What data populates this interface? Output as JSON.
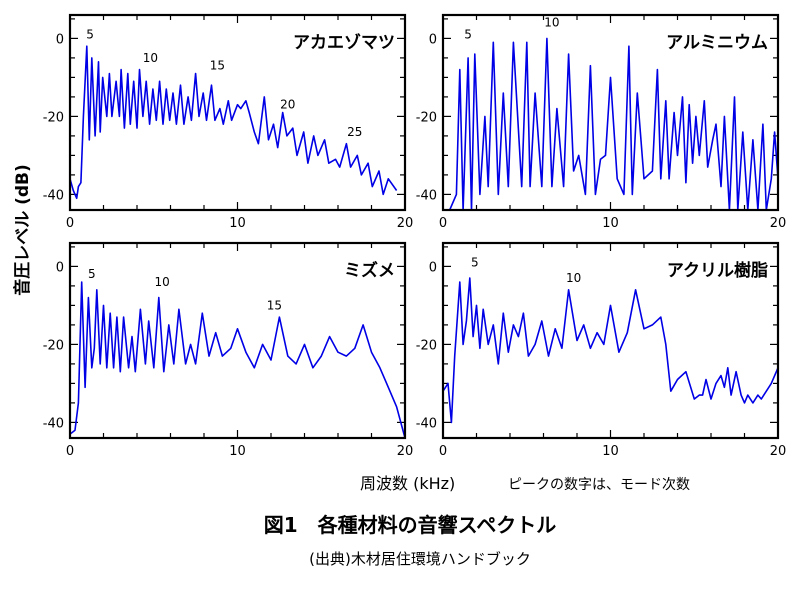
{
  "figure": {
    "ylabel": "音圧レベル (dB)",
    "xlabel": "周波数 (kHz)",
    "note": "ピークの数字は、モード次数",
    "title": "図1　各種材料の音響スペクトル",
    "source": "(出典)木材居住環境ハンドブック"
  },
  "chart_data": [
    {
      "type": "line",
      "title": "アカエゾマツ",
      "xlabel": "周波数 (kHz)",
      "ylabel": "音圧レベル (dB)",
      "xlim": [
        0,
        20
      ],
      "ylim": [
        -44,
        6
      ],
      "xticks": [
        0,
        10,
        20
      ],
      "yticks": [
        0,
        -20,
        -40
      ],
      "grid": false,
      "series": [
        {
          "color": "#0000e6",
          "x": [
            0.0,
            0.2,
            0.4,
            0.5,
            0.65,
            0.8,
            1.0,
            1.15,
            1.3,
            1.5,
            1.7,
            1.8,
            1.95,
            2.2,
            2.35,
            2.5,
            2.75,
            2.95,
            3.05,
            3.25,
            3.45,
            3.6,
            3.8,
            4.0,
            4.15,
            4.35,
            4.55,
            4.75,
            4.95,
            5.15,
            5.35,
            5.55,
            5.75,
            5.95,
            6.15,
            6.35,
            6.6,
            6.8,
            7.05,
            7.25,
            7.5,
            7.7,
            7.95,
            8.15,
            8.45,
            8.65,
            8.95,
            9.15,
            9.45,
            9.65,
            10.0,
            10.2,
            10.5,
            10.7,
            11.0,
            11.25,
            11.6,
            11.85,
            12.15,
            12.4,
            12.7,
            12.95,
            13.3,
            13.55,
            13.95,
            14.2,
            14.55,
            14.8,
            15.2,
            15.45,
            15.85,
            16.1,
            16.5,
            16.75,
            17.15,
            17.4,
            17.8,
            18.05,
            18.45,
            18.7,
            19.0,
            19.5
          ],
          "y": [
            -36,
            -39,
            -41,
            -38,
            -37,
            -20,
            -2,
            -26,
            -5,
            -25,
            -6,
            -24,
            -10,
            -20,
            -9,
            -20,
            -11,
            -20,
            -8,
            -23,
            -9,
            -22,
            -11,
            -23,
            -8,
            -20,
            -11,
            -22,
            -13,
            -21,
            -11,
            -22,
            -13,
            -21,
            -14,
            -22,
            -12,
            -22,
            -15,
            -21,
            -9,
            -20,
            -14,
            -21,
            -12,
            -21,
            -18,
            -22,
            -16,
            -21,
            -17,
            -18,
            -16,
            -19,
            -24,
            -27,
            -15,
            -26,
            -22,
            -28,
            -19,
            -25,
            -23,
            -30,
            -24,
            -32,
            -25,
            -30,
            -26,
            -32,
            -31,
            -33,
            -27,
            -33,
            -30,
            -35,
            -32,
            -38,
            -34,
            -40,
            -36,
            -39
          ]
        }
      ],
      "annotations": [
        {
          "text": "5",
          "x": 1.2,
          "y": 0
        },
        {
          "text": "10",
          "x": 4.8,
          "y": -6
        },
        {
          "text": "15",
          "x": 8.8,
          "y": -8
        },
        {
          "text": "20",
          "x": 13.0,
          "y": -18
        },
        {
          "text": "25",
          "x": 17.0,
          "y": -25
        }
      ]
    },
    {
      "type": "line",
      "title": "アルミニウム",
      "xlabel": "周波数 (kHz)",
      "ylabel": "音圧レベル (dB)",
      "xlim": [
        0,
        20
      ],
      "ylim": [
        -44,
        6
      ],
      "xticks": [
        0,
        10,
        20
      ],
      "yticks": [
        0,
        -20,
        -40
      ],
      "grid": false,
      "series": [
        {
          "color": "#0000e6",
          "x": [
            0.4,
            0.8,
            1.0,
            1.2,
            1.5,
            1.7,
            1.9,
            2.2,
            2.5,
            2.7,
            3.0,
            3.3,
            3.6,
            3.9,
            4.2,
            4.7,
            5.0,
            5.2,
            5.5,
            5.9,
            6.2,
            6.5,
            6.8,
            7.2,
            7.5,
            7.8,
            8.1,
            8.5,
            8.8,
            9.1,
            9.4,
            9.7,
            10.0,
            10.4,
            10.8,
            11.1,
            11.3,
            11.6,
            12.0,
            12.5,
            12.8,
            13.0,
            13.3,
            13.5,
            13.8,
            14.0,
            14.3,
            14.5,
            14.7,
            14.9,
            15.1,
            15.3,
            15.6,
            15.8,
            16.1,
            16.3,
            16.6,
            16.8,
            17.1,
            17.4,
            17.6,
            17.9,
            18.2,
            18.5,
            18.8,
            19.1,
            19.3,
            19.6,
            19.8,
            20.0
          ],
          "y": [
            -44,
            -40,
            -8,
            -44,
            -5,
            -44,
            -4,
            -40,
            -20,
            -38,
            -1,
            -40,
            -14,
            -38,
            -1,
            -38,
            -1,
            -38,
            -14,
            -38,
            0,
            -38,
            -18,
            -38,
            -4,
            -34,
            -30,
            -40,
            -7,
            -40,
            -31,
            -30,
            -10,
            -36,
            -40,
            -2,
            -40,
            -14,
            -36,
            -34,
            -8,
            -36,
            -16,
            -36,
            -19,
            -30,
            -15,
            -37,
            -17,
            -32,
            -20,
            -30,
            -16,
            -33,
            -26,
            -22,
            -38,
            -20,
            -44,
            -15,
            -44,
            -24,
            -44,
            -26,
            -44,
            -22,
            -44,
            -36,
            -24,
            -36
          ]
        }
      ],
      "annotations": [
        {
          "text": "5",
          "x": 1.5,
          "y": 0
        },
        {
          "text": "10",
          "x": 6.5,
          "y": 3
        }
      ]
    },
    {
      "type": "line",
      "title": "ミズメ",
      "xlabel": "周波数 (kHz)",
      "ylabel": "音圧レベル (dB)",
      "xlim": [
        0,
        20
      ],
      "ylim": [
        -44,
        6
      ],
      "xticks": [
        0,
        10,
        20
      ],
      "yticks": [
        0,
        -20,
        -40
      ],
      "grid": false,
      "series": [
        {
          "color": "#0000e6",
          "x": [
            0.0,
            0.3,
            0.5,
            0.7,
            0.9,
            1.1,
            1.3,
            1.45,
            1.6,
            1.8,
            2.0,
            2.2,
            2.4,
            2.6,
            2.8,
            3.0,
            3.2,
            3.5,
            3.7,
            3.9,
            4.2,
            4.5,
            4.7,
            5.0,
            5.3,
            5.6,
            5.9,
            6.2,
            6.5,
            6.9,
            7.2,
            7.5,
            7.9,
            8.3,
            8.7,
            9.1,
            9.6,
            10.0,
            10.5,
            11.0,
            11.5,
            12.0,
            12.5,
            13.0,
            13.5,
            14.0,
            14.5,
            15.0,
            15.5,
            16.0,
            16.5,
            17.0,
            17.5,
            18.0,
            18.5,
            19.0,
            19.5,
            20.0
          ],
          "y": [
            -43,
            -42,
            -35,
            -4,
            -31,
            -8,
            -26,
            -21,
            -6,
            -25,
            -10,
            -26,
            -12,
            -26,
            -13,
            -27,
            -13,
            -26,
            -18,
            -27,
            -11,
            -25,
            -14,
            -26,
            -8,
            -27,
            -15,
            -25,
            -11,
            -25,
            -20,
            -25,
            -12,
            -23,
            -17,
            -23,
            -21,
            -16,
            -22,
            -26,
            -20,
            -24,
            -13,
            -23,
            -25,
            -20,
            -26,
            -23,
            -18,
            -22,
            -23,
            -21,
            -15,
            -22,
            -26,
            -31,
            -36,
            -44
          ]
        }
      ],
      "annotations": [
        {
          "text": "5",
          "x": 1.3,
          "y": -3
        },
        {
          "text": "10",
          "x": 5.5,
          "y": -5
        },
        {
          "text": "15",
          "x": 12.2,
          "y": -11
        }
      ]
    },
    {
      "type": "line",
      "title": "アクリル樹脂",
      "xlabel": "周波数 (kHz)",
      "ylabel": "音圧レベル (dB)",
      "xlim": [
        0,
        20
      ],
      "ylim": [
        -44,
        6
      ],
      "xticks": [
        0,
        10,
        20
      ],
      "yticks": [
        0,
        -20,
        -40
      ],
      "grid": false,
      "series": [
        {
          "color": "#0000e6",
          "x": [
            0.0,
            0.3,
            0.5,
            0.7,
            1.0,
            1.2,
            1.4,
            1.6,
            1.8,
            2.0,
            2.2,
            2.4,
            2.7,
            3.0,
            3.3,
            3.6,
            3.9,
            4.2,
            4.5,
            4.8,
            5.1,
            5.5,
            5.9,
            6.3,
            6.7,
            7.1,
            7.5,
            8.0,
            8.4,
            8.8,
            9.2,
            9.6,
            10.0,
            10.5,
            11.0,
            11.5,
            12.0,
            12.5,
            13.0,
            13.3,
            13.6,
            14.0,
            14.5,
            15.0,
            15.3,
            15.5,
            15.7,
            16.0,
            16.3,
            16.6,
            16.8,
            17.0,
            17.2,
            17.5,
            17.8,
            18.0,
            18.2,
            18.5,
            18.8,
            19.0,
            19.3,
            19.6,
            20.0
          ],
          "y": [
            -32,
            -30,
            -40,
            -23,
            -4,
            -20,
            -14,
            -3,
            -18,
            -10,
            -21,
            -11,
            -20,
            -15,
            -25,
            -12,
            -22,
            -15,
            -18,
            -12,
            -23,
            -20,
            -14,
            -23,
            -16,
            -21,
            -6,
            -19,
            -15,
            -21,
            -17,
            -20,
            -10,
            -22,
            -17,
            -6,
            -16,
            -15,
            -13,
            -20,
            -32,
            -29,
            -27,
            -34,
            -33,
            -33,
            -29,
            -34,
            -30,
            -28,
            -31,
            -26,
            -33,
            -27,
            -33,
            -35,
            -33,
            -35,
            -33,
            -34,
            -32,
            -30,
            -26
          ]
        }
      ],
      "annotations": [
        {
          "text": "5",
          "x": 1.9,
          "y": 0
        },
        {
          "text": "10",
          "x": 7.8,
          "y": -4
        }
      ]
    }
  ]
}
